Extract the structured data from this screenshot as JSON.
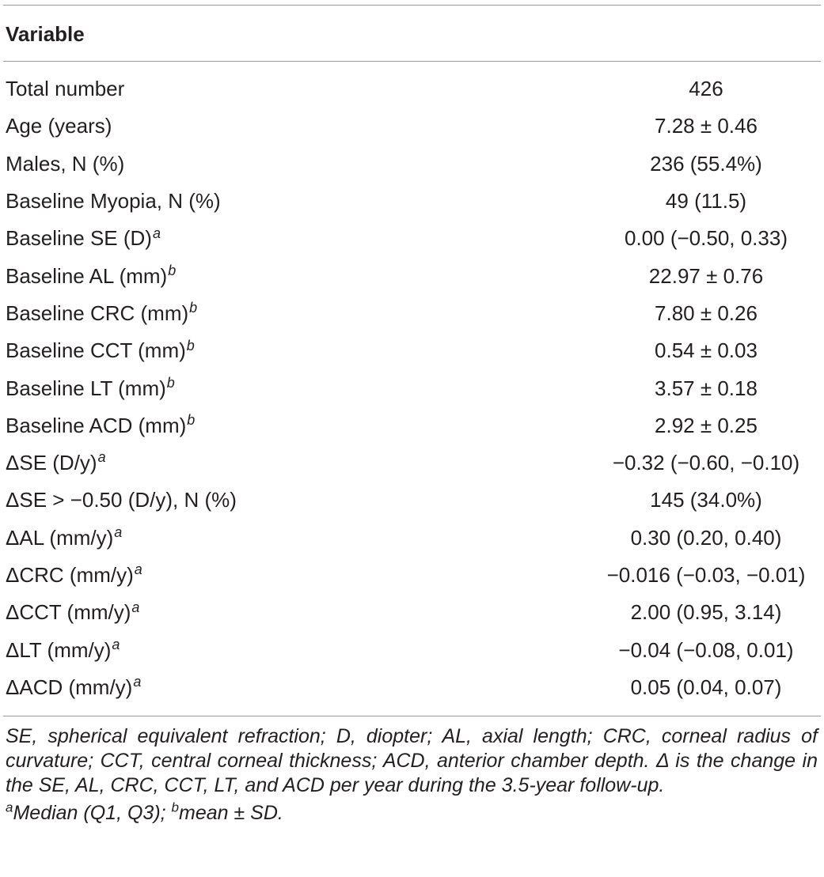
{
  "table": {
    "header": "Variable",
    "rows": [
      {
        "label": "Total number",
        "sup": "",
        "value": "426"
      },
      {
        "label": "Age (years)",
        "sup": "",
        "value": "7.28 ± 0.46"
      },
      {
        "label": "Males, N (%)",
        "sup": "",
        "value": "236 (55.4%)"
      },
      {
        "label": "Baseline Myopia, N (%)",
        "sup": "",
        "value": "49 (11.5)"
      },
      {
        "label": "Baseline SE (D)",
        "sup": "a",
        "value": "0.00 (−0.50, 0.33)"
      },
      {
        "label": "Baseline AL (mm)",
        "sup": "b",
        "value": "22.97 ± 0.76"
      },
      {
        "label": "Baseline CRC (mm)",
        "sup": "b",
        "value": "7.80 ± 0.26"
      },
      {
        "label": "Baseline CCT (mm)",
        "sup": "b",
        "value": "0.54 ± 0.03"
      },
      {
        "label": "Baseline LT (mm)",
        "sup": "b",
        "value": "3.57 ± 0.18"
      },
      {
        "label": "Baseline ACD (mm)",
        "sup": "b",
        "value": "2.92 ± 0.25"
      },
      {
        "label": "ΔSE (D/y)",
        "sup": "a",
        "value": "−0.32 (−0.60, −0.10)"
      },
      {
        "label": "ΔSE > −0.50 (D/y), N (%)",
        "sup": "",
        "value": "145 (34.0%)"
      },
      {
        "label": "ΔAL (mm/y)",
        "sup": "a",
        "value": "0.30 (0.20, 0.40)"
      },
      {
        "label": "ΔCRC (mm/y)",
        "sup": "a",
        "value": "−0.016 (−0.03, −0.01)"
      },
      {
        "label": "ΔCCT (mm/y)",
        "sup": "a",
        "value": "2.00 (0.95, 3.14)"
      },
      {
        "label": "ΔLT (mm/y)",
        "sup": "a",
        "value": "−0.04 (−0.08, 0.01)"
      },
      {
        "label": "ΔACD (mm/y)",
        "sup": "a",
        "value": "0.05 (0.04, 0.07)"
      }
    ]
  },
  "footnotes": {
    "abbreviations": "SE, spherical equivalent refraction; D, diopter; AL, axial length; CRC, corneal radius of curvature; CCT, central corneal thickness; ACD, anterior chamber depth. Δ is the change in the SE, AL, CRC, CCT, LT, and ACD per year during the 3.5-year follow-up.",
    "sup_a": "a",
    "note_a": "Median (Q1, Q3); ",
    "sup_b": "b",
    "note_b": "mean ± SD."
  }
}
